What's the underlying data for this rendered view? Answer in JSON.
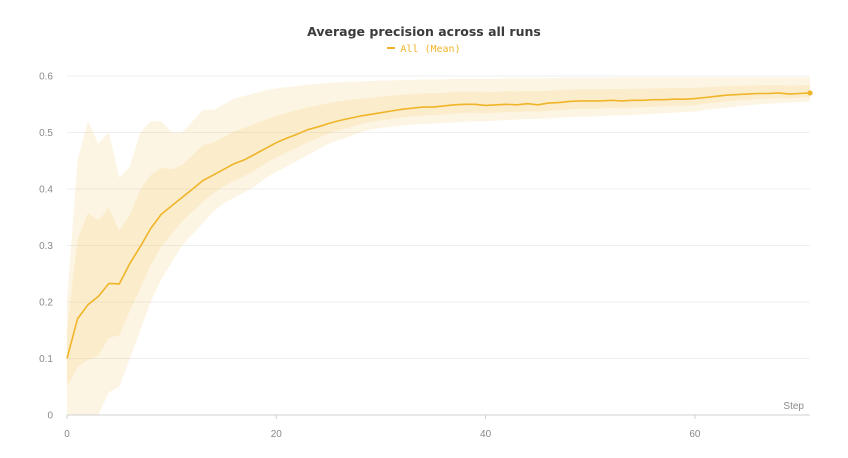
{
  "chart_data": {
    "type": "line",
    "title": "Average precision across all runs",
    "xlabel": "Step",
    "ylabel": "",
    "xlim": [
      0,
      71
    ],
    "ylim": [
      0,
      0.6
    ],
    "xticks": [
      "0",
      "20",
      "40",
      "60"
    ],
    "yticks": [
      "0",
      "0.1",
      "0.2",
      "0.3",
      "0.4",
      "0.5",
      "0.6"
    ],
    "grid": true,
    "legend_position": "top-center",
    "series": [
      {
        "name": "All (Mean)",
        "color": "#f0b429",
        "x": [
          0,
          1,
          2,
          3,
          4,
          5,
          6,
          7,
          8,
          9,
          10,
          11,
          12,
          13,
          14,
          15,
          16,
          17,
          18,
          19,
          20,
          21,
          22,
          23,
          24,
          25,
          26,
          27,
          28,
          29,
          30,
          31,
          32,
          33,
          34,
          35,
          36,
          37,
          38,
          39,
          40,
          41,
          42,
          43,
          44,
          45,
          46,
          47,
          48,
          49,
          50,
          51,
          52,
          53,
          54,
          55,
          56,
          57,
          58,
          59,
          60,
          61,
          62,
          63,
          64,
          65,
          66,
          67,
          68,
          69,
          70,
          71
        ],
        "y": [
          0.1,
          0.17,
          0.195,
          0.21,
          0.233,
          0.232,
          0.268,
          0.298,
          0.33,
          0.355,
          0.37,
          0.385,
          0.4,
          0.415,
          0.425,
          0.435,
          0.445,
          0.452,
          0.462,
          0.472,
          0.482,
          0.49,
          0.497,
          0.505,
          0.51,
          0.516,
          0.521,
          0.525,
          0.529,
          0.532,
          0.535,
          0.538,
          0.541,
          0.543,
          0.545,
          0.545,
          0.547,
          0.549,
          0.55,
          0.55,
          0.548,
          0.549,
          0.55,
          0.549,
          0.551,
          0.549,
          0.552,
          0.553,
          0.555,
          0.556,
          0.556,
          0.556,
          0.557,
          0.556,
          0.557,
          0.557,
          0.558,
          0.558,
          0.559,
          0.559,
          0.56,
          0.562,
          0.564,
          0.566,
          0.567,
          0.568,
          0.569,
          0.569,
          0.57,
          0.568,
          0.569,
          0.57
        ],
        "min": [
          0,
          0,
          0,
          0,
          0.04,
          0.05,
          0.1,
          0.15,
          0.2,
          0.24,
          0.27,
          0.3,
          0.32,
          0.34,
          0.36,
          0.375,
          0.385,
          0.395,
          0.405,
          0.42,
          0.43,
          0.44,
          0.45,
          0.46,
          0.47,
          0.48,
          0.487,
          0.493,
          0.5,
          0.505,
          0.508,
          0.51,
          0.512,
          0.514,
          0.515,
          0.516,
          0.517,
          0.518,
          0.519,
          0.52,
          0.52,
          0.521,
          0.522,
          0.523,
          0.524,
          0.524,
          0.525,
          0.526,
          0.527,
          0.528,
          0.528,
          0.529,
          0.53,
          0.53,
          0.531,
          0.532,
          0.533,
          0.534,
          0.535,
          0.536,
          0.537,
          0.54,
          0.542,
          0.544,
          0.546,
          0.548,
          0.55,
          0.551,
          0.552,
          0.553,
          0.554,
          0.555
        ],
        "max": [
          0.2,
          0.45,
          0.52,
          0.48,
          0.5,
          0.42,
          0.44,
          0.5,
          0.52,
          0.52,
          0.5,
          0.5,
          0.52,
          0.54,
          0.54,
          0.55,
          0.56,
          0.565,
          0.57,
          0.575,
          0.578,
          0.58,
          0.582,
          0.585,
          0.586,
          0.588,
          0.589,
          0.59,
          0.59,
          0.591,
          0.592,
          0.592,
          0.593,
          0.593,
          0.594,
          0.594,
          0.594,
          0.595,
          0.595,
          0.595,
          0.595,
          0.595,
          0.596,
          0.596,
          0.596,
          0.596,
          0.596,
          0.597,
          0.597,
          0.597,
          0.597,
          0.597,
          0.597,
          0.598,
          0.598,
          0.598,
          0.598,
          0.598,
          0.598,
          0.598,
          0.598,
          0.598,
          0.598,
          0.598,
          0.598,
          0.598,
          0.598,
          0.598,
          0.598,
          0.598,
          0.598,
          0.598
        ]
      }
    ]
  }
}
